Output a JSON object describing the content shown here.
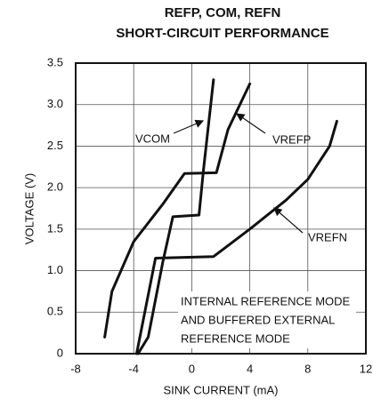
{
  "chart_data": {
    "type": "line",
    "title": [
      "REFP, COM, REFN",
      "SHORT-CIRCUIT PERFORMANCE"
    ],
    "xlabel": "SINK CURRENT (mA)",
    "ylabel": "VOLTAGE (V)",
    "xlim": [
      -8,
      12
    ],
    "ylim": [
      0,
      3.5
    ],
    "xticks": [
      -8,
      -4,
      0,
      4,
      8,
      12
    ],
    "yticks": [
      0,
      0.5,
      {
        "value": 1,
        "label": "1.0"
      },
      1.5,
      {
        "value": 2,
        "label": "2.0"
      },
      2.5,
      {
        "value": 3,
        "label": "3.0"
      },
      3.5
    ],
    "grid": true,
    "annotation": [
      "INTERNAL REFERENCE MODE",
      "AND BUFFERED EXTERNAL",
      "REFERENCE MODE"
    ],
    "series": [
      {
        "name": "VCOM",
        "color": "#111111",
        "x": [
          -3.7,
          -3,
          -2,
          -1.3,
          0.5,
          0.8,
          1.5
        ],
        "values": [
          0,
          0.2,
          1.1,
          1.65,
          1.67,
          2.2,
          3.3
        ]
      },
      {
        "name": "VREFP",
        "color": "#111111",
        "x": [
          -6,
          -5.5,
          -4,
          -2,
          -0.5,
          1.7,
          2.5,
          4
        ],
        "values": [
          0.2,
          0.75,
          1.35,
          1.8,
          2.17,
          2.18,
          2.7,
          3.25
        ]
      },
      {
        "name": "VREFN",
        "color": "#111111",
        "x": [
          -3.8,
          -2.5,
          1.5,
          4,
          6.5,
          8,
          9.5,
          10
        ],
        "values": [
          0,
          1.15,
          1.17,
          1.5,
          1.85,
          2.1,
          2.5,
          2.8
        ]
      }
    ]
  }
}
